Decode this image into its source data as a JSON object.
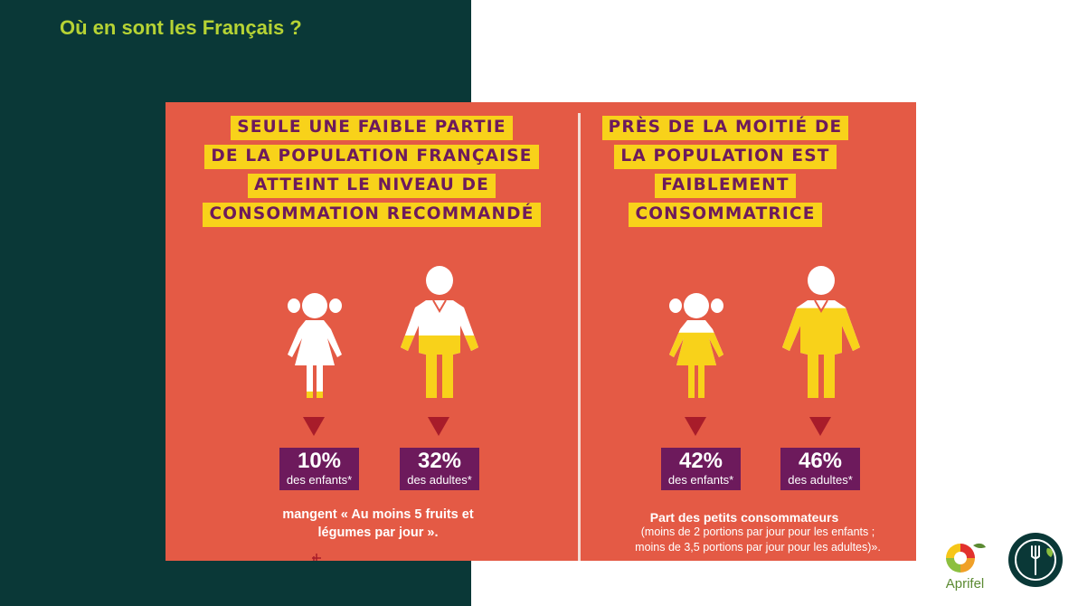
{
  "slide": {
    "title": "Où en sont les Français ?"
  },
  "colors": {
    "dark_band": "#0a3837",
    "title_green": "#b6d334",
    "panel": "#e45a45",
    "banner_yellow": "#f8d21a",
    "purple": "#6d1a5c",
    "arrow": "#a81c2a"
  },
  "left_panel": {
    "banner_lines": [
      "SEULE UNE FAIBLE PARTIE",
      "DE LA POPULATION FRANÇAISE",
      "ATTEINT LE NIVEAU DE",
      "CONSOMMATION RECOMMANDÉ"
    ],
    "stats": [
      {
        "value": "10%",
        "label": "des enfants*",
        "fill_fraction": 0.1
      },
      {
        "value": "32%",
        "label": "des adultes*",
        "fill_fraction": 0.32
      }
    ],
    "caption_lines": [
      "mangent « Au moins 5 fruits et",
      "légumes par jour »."
    ]
  },
  "right_panel": {
    "banner_lines": [
      "PRÈS DE LA MOITIÉ DE",
      "LA POPULATION EST",
      "FAIBLEMENT",
      "CONSOMMATRICE"
    ],
    "stats": [
      {
        "value": "42%",
        "label": "des enfants*",
        "fill_fraction": 0.42
      },
      {
        "value": "46%",
        "label": "des adultes*",
        "fill_fraction": 0.46
      }
    ],
    "caption_title": "Part des petits consommateurs",
    "caption_note_lines": [
      "(moins de 2 portions par jour pour les enfants ;",
      "moins de 3,5 portions par jour pour les adultes)»."
    ]
  },
  "logos": {
    "aprifel": "Aprifel",
    "aprifel_icon": "fruit-circle-icon",
    "round_icon": "fork-plate-icon"
  }
}
